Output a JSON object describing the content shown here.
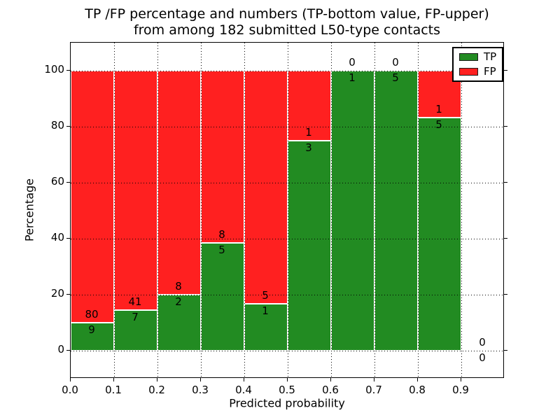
{
  "title": {
    "line1": "TP /FP percentage and numbers (TP-bottom value, FP-upper)",
    "line2": "from among 182 submitted L50-type contacts"
  },
  "chart_data": {
    "type": "bar",
    "stacked": true,
    "title_line1": "TP /FP percentage and numbers (TP-bottom value, FP-upper)",
    "title_line2": "from among 182 submitted L50-type contacts",
    "xlabel": "Predicted probability",
    "ylabel": "Percentage",
    "total_contacts": 182,
    "xlim": [
      0.0,
      1.0
    ],
    "ylim": [
      -10,
      110
    ],
    "grid": true,
    "grid_style": "dotted",
    "xtick_values": [
      0.0,
      0.1,
      0.2,
      0.3,
      0.4,
      0.5,
      0.6,
      0.7,
      0.8,
      0.9
    ],
    "xtick_labels": [
      "0.0",
      "0.1",
      "0.2",
      "0.3",
      "0.4",
      "0.5",
      "0.6",
      "0.7",
      "0.8",
      "0.9"
    ],
    "ytick_values": [
      0,
      20,
      40,
      60,
      80,
      100
    ],
    "ytick_labels": [
      "0",
      "20",
      "40",
      "60",
      "80",
      "100"
    ],
    "colors": {
      "tp": "#228b22",
      "fp": "#ff2020",
      "bar_edge": "#ffffff",
      "grid": "#000000"
    },
    "legend": {
      "position": "upper right",
      "entries": [
        {
          "label": "TP",
          "color": "#228b22"
        },
        {
          "label": "FP",
          "color": "#ff2020"
        }
      ]
    },
    "bin_width": 0.1,
    "bins": [
      {
        "x_start": 0.0,
        "x_end": 0.1,
        "tp_count": 9,
        "fp_count": 80,
        "tp_pct": 10.1,
        "fp_pct": 89.9
      },
      {
        "x_start": 0.1,
        "x_end": 0.2,
        "tp_count": 7,
        "fp_count": 41,
        "tp_pct": 14.6,
        "fp_pct": 85.4
      },
      {
        "x_start": 0.2,
        "x_end": 0.3,
        "tp_count": 2,
        "fp_count": 8,
        "tp_pct": 20.0,
        "fp_pct": 80.0
      },
      {
        "x_start": 0.3,
        "x_end": 0.4,
        "tp_count": 5,
        "fp_count": 8,
        "tp_pct": 38.5,
        "fp_pct": 61.5
      },
      {
        "x_start": 0.4,
        "x_end": 0.5,
        "tp_count": 1,
        "fp_count": 5,
        "tp_pct": 16.7,
        "fp_pct": 83.3
      },
      {
        "x_start": 0.5,
        "x_end": 0.6,
        "tp_count": 3,
        "fp_count": 1,
        "tp_pct": 75.0,
        "fp_pct": 25.0
      },
      {
        "x_start": 0.6,
        "x_end": 0.7,
        "tp_count": 1,
        "fp_count": 0,
        "tp_pct": 100.0,
        "fp_pct": 0.0
      },
      {
        "x_start": 0.7,
        "x_end": 0.8,
        "tp_count": 5,
        "fp_count": 0,
        "tp_pct": 100.0,
        "fp_pct": 0.0
      },
      {
        "x_start": 0.8,
        "x_end": 0.9,
        "tp_count": 5,
        "fp_count": 1,
        "tp_pct": 83.3,
        "fp_pct": 16.7
      },
      {
        "x_start": 0.9,
        "x_end": 1.0,
        "tp_count": 0,
        "fp_count": 0,
        "tp_pct": 0.0,
        "fp_pct": 0.0
      }
    ]
  }
}
